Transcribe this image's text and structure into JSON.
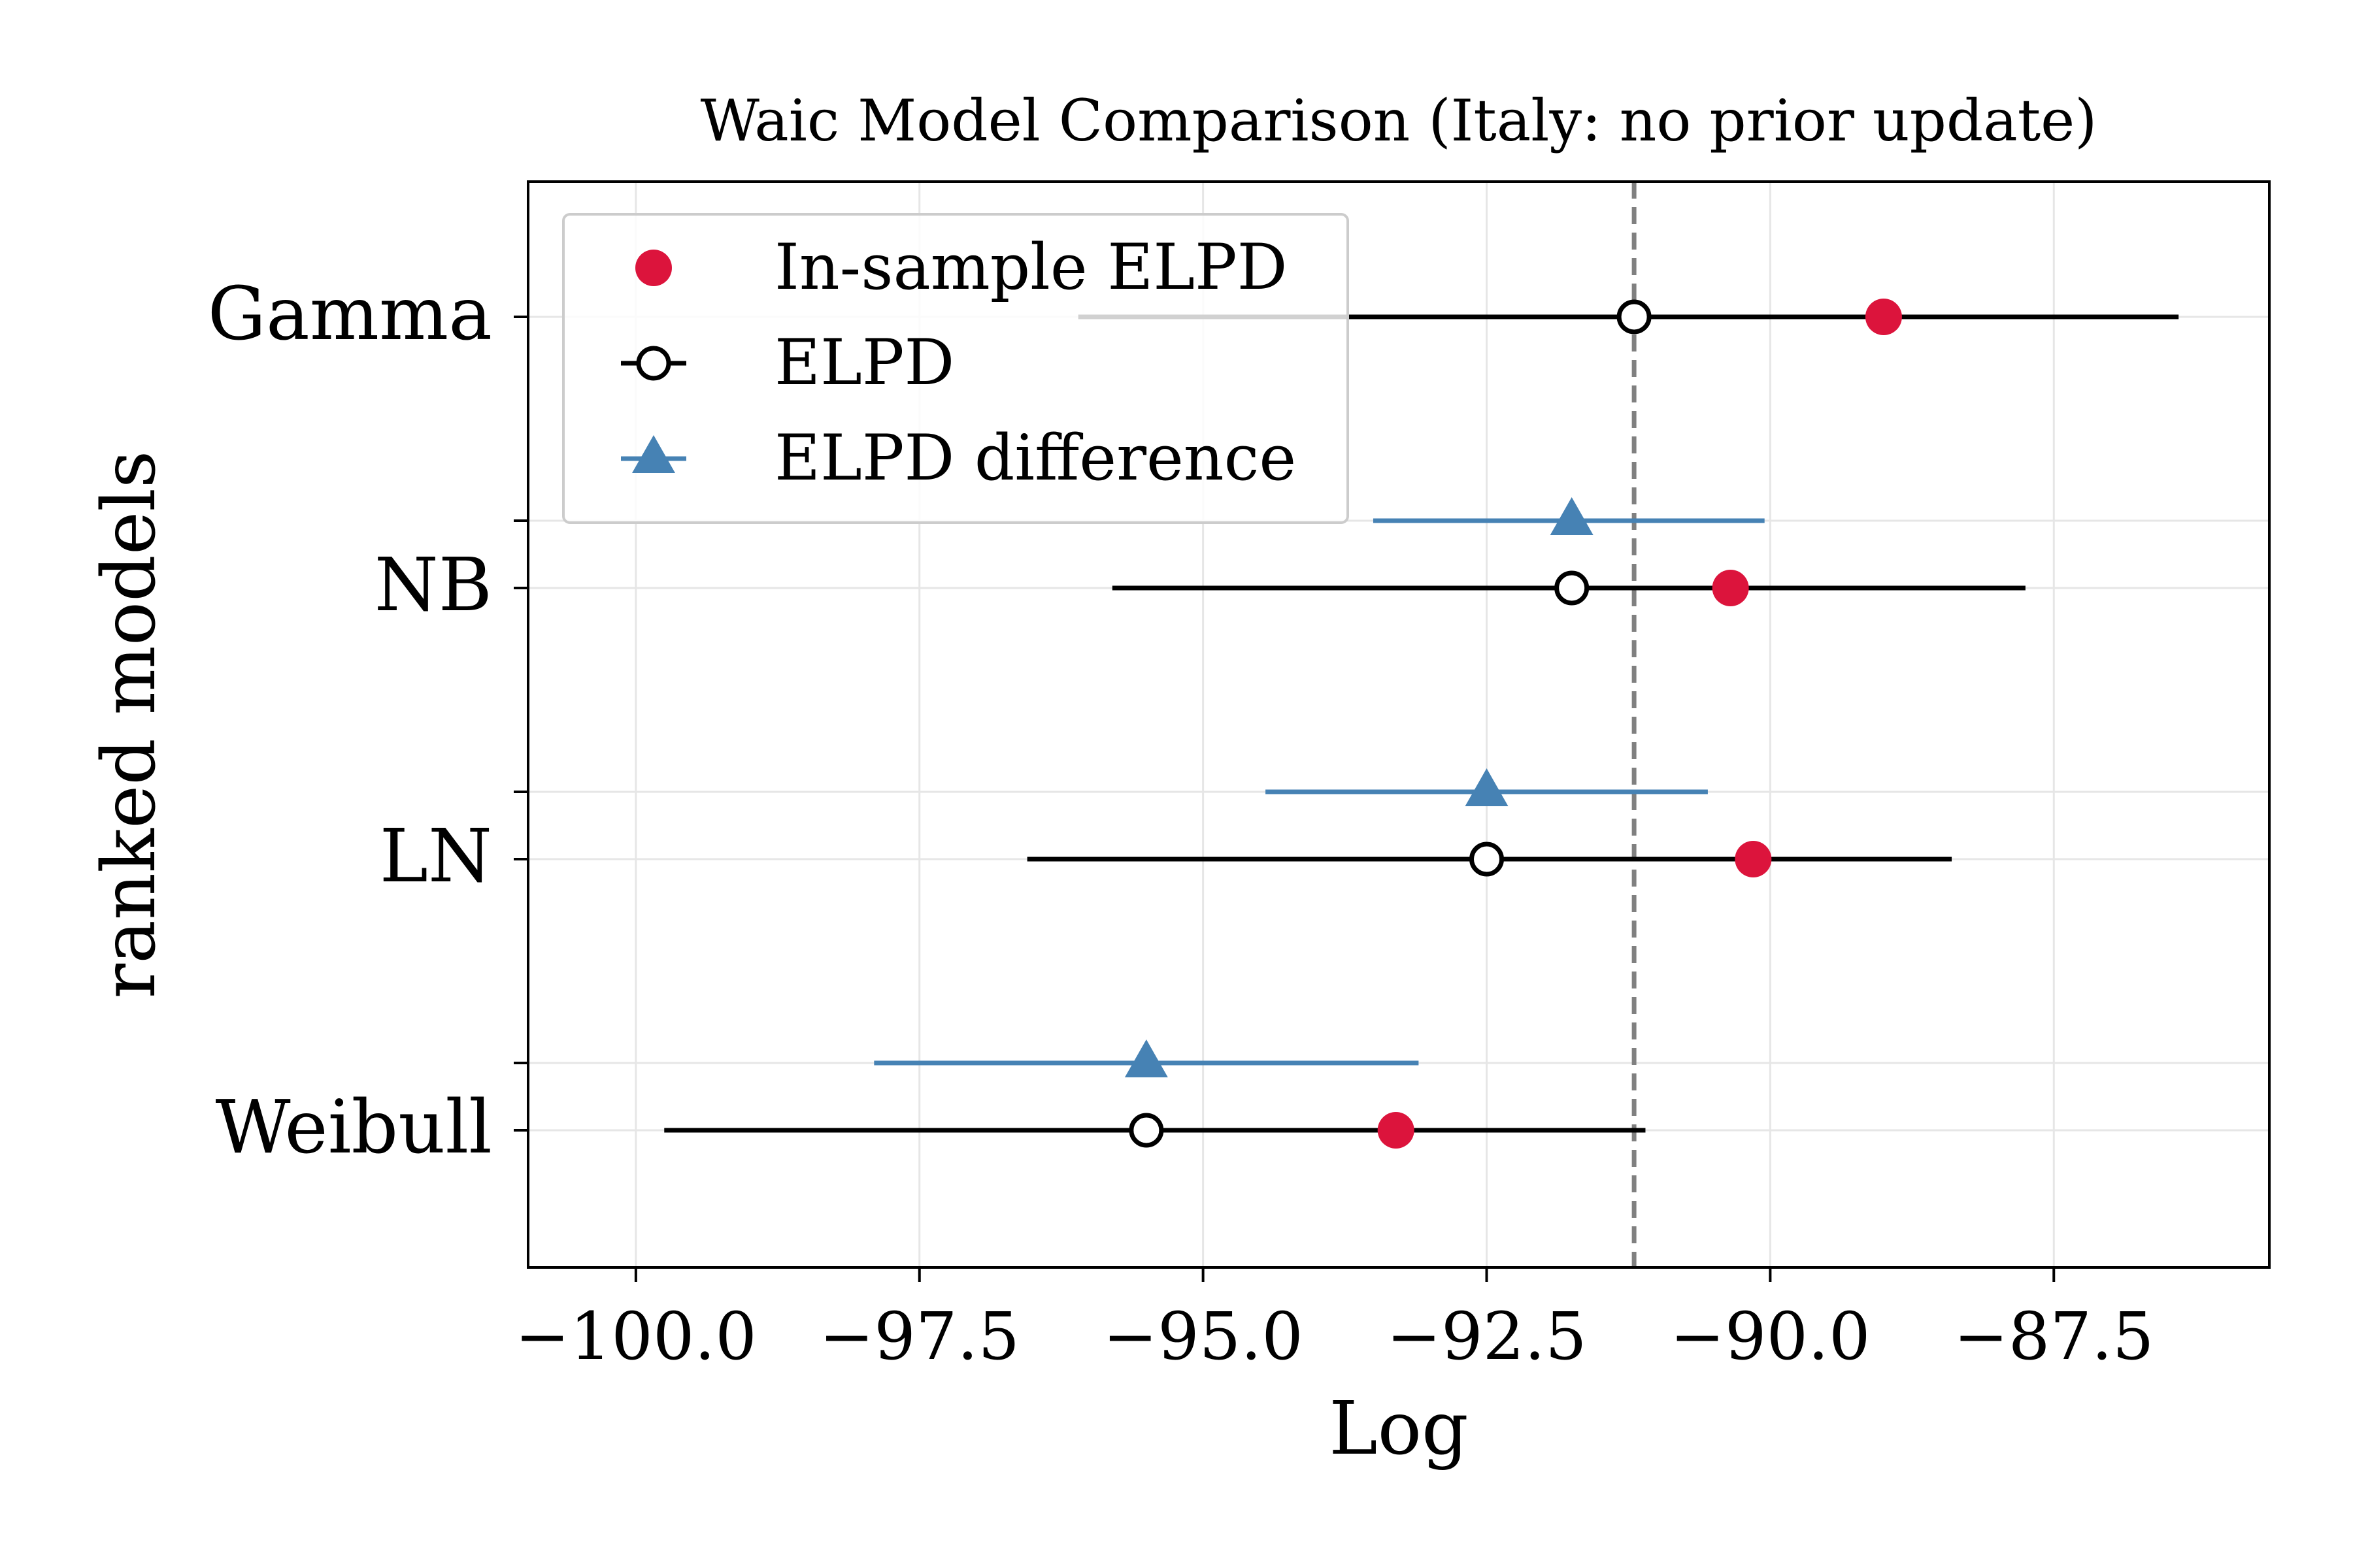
{
  "chart_data": {
    "type": "errorbar",
    "title": "Waic Model Comparison (Italy: no prior update)",
    "xlabel": "Log",
    "ylabel": "ranked models",
    "xlim": [
      -100.95,
      -85.6
    ],
    "x_ticks": [
      -100.0,
      -97.5,
      -95.0,
      -92.5,
      -90.0,
      -87.5
    ],
    "x_tick_labels": [
      "−100.0",
      "−97.5",
      "−95.0",
      "−92.5",
      "−90.0",
      "−87.5"
    ],
    "grid": true,
    "legend_position": "upper-left",
    "reference_line": {
      "x": -91.2,
      "style": "dashed",
      "color": "#808080"
    },
    "models": [
      {
        "name": "Gamma",
        "elpd": -91.2,
        "elpd_low": -96.1,
        "elpd_high": -86.4,
        "in_sample": -89.0
      },
      {
        "name": "NB",
        "elpd": -91.75,
        "elpd_low": -95.8,
        "elpd_high": -87.75,
        "in_sample": -90.35,
        "diff": -91.75,
        "diff_low": -93.5,
        "diff_high": -90.05
      },
      {
        "name": "LN",
        "elpd": -92.5,
        "elpd_low": -96.55,
        "elpd_high": -88.4,
        "in_sample": -90.15,
        "diff": -92.5,
        "diff_low": -94.45,
        "diff_high": -90.55
      },
      {
        "name": "Weibull",
        "elpd": -95.5,
        "elpd_low": -99.75,
        "elpd_high": -91.1,
        "in_sample": -93.3,
        "diff": -95.5,
        "diff_low": -97.9,
        "diff_high": -93.1
      }
    ],
    "legend": [
      {
        "label": "In-sample ELPD",
        "marker": "filled-circle",
        "color": "#dc143c"
      },
      {
        "label": "ELPD",
        "marker": "open-circle",
        "color": "#000000"
      },
      {
        "label": "ELPD difference",
        "marker": "triangle",
        "color": "#4682b4"
      }
    ],
    "colors": {
      "in_sample": "#dc143c",
      "elpd": "#000000",
      "diff": "#4682b4",
      "grid": "#e6e6e6"
    }
  }
}
